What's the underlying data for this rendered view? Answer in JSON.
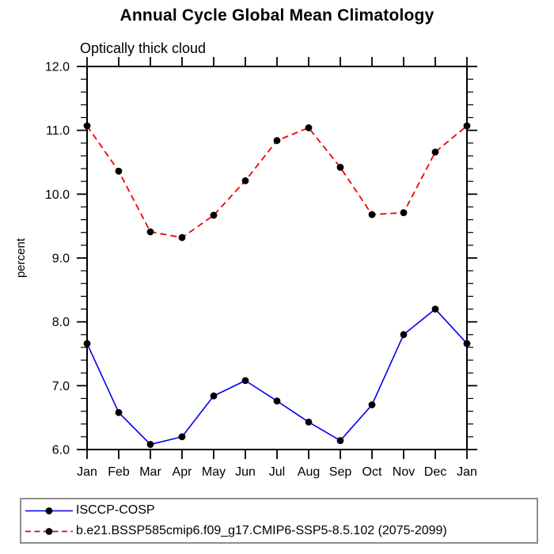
{
  "header": {
    "title": "Annual Cycle Global Mean Climatology",
    "subtitle": "Optically thick cloud"
  },
  "chart_data": {
    "type": "line",
    "title": "Annual Cycle Global Mean Climatology",
    "subtitle": "Optically thick cloud",
    "ylabel": "percent",
    "xlabel": "",
    "ylim": [
      6.0,
      12.0
    ],
    "ytick_step": 1.0,
    "minor_tick_step": 0.2,
    "ytick_labels": [
      "6.0",
      "7.0",
      "8.0",
      "9.0",
      "10.0",
      "11.0",
      "12.0"
    ],
    "categories": [
      "Jan",
      "Feb",
      "Mar",
      "Apr",
      "May",
      "Jun",
      "Jul",
      "Aug",
      "Sep",
      "Oct",
      "Nov",
      "Dec",
      "Jan"
    ],
    "grid": false,
    "legend_position": "bottom",
    "frame_color": "#000000",
    "marker_color": "#000000",
    "series": [
      {
        "name": "ISCCP-COSP",
        "color": "#0000ee",
        "style": "solid",
        "marker": "black-dot",
        "values": [
          7.66,
          6.58,
          6.08,
          6.2,
          6.84,
          7.08,
          6.76,
          6.43,
          6.14,
          6.7,
          7.8,
          8.2,
          7.66
        ]
      },
      {
        "name": "b.e21.BSSP585cmip6.f09_g17.CMIP6-SSP5-8.5.102 (2075-2099)",
        "color": "#f20000",
        "style": "dashed",
        "marker": "black-dot",
        "values": [
          11.07,
          10.36,
          9.41,
          9.32,
          9.67,
          10.21,
          10.84,
          11.04,
          10.42,
          9.68,
          9.71,
          10.66,
          11.07
        ]
      }
    ]
  }
}
